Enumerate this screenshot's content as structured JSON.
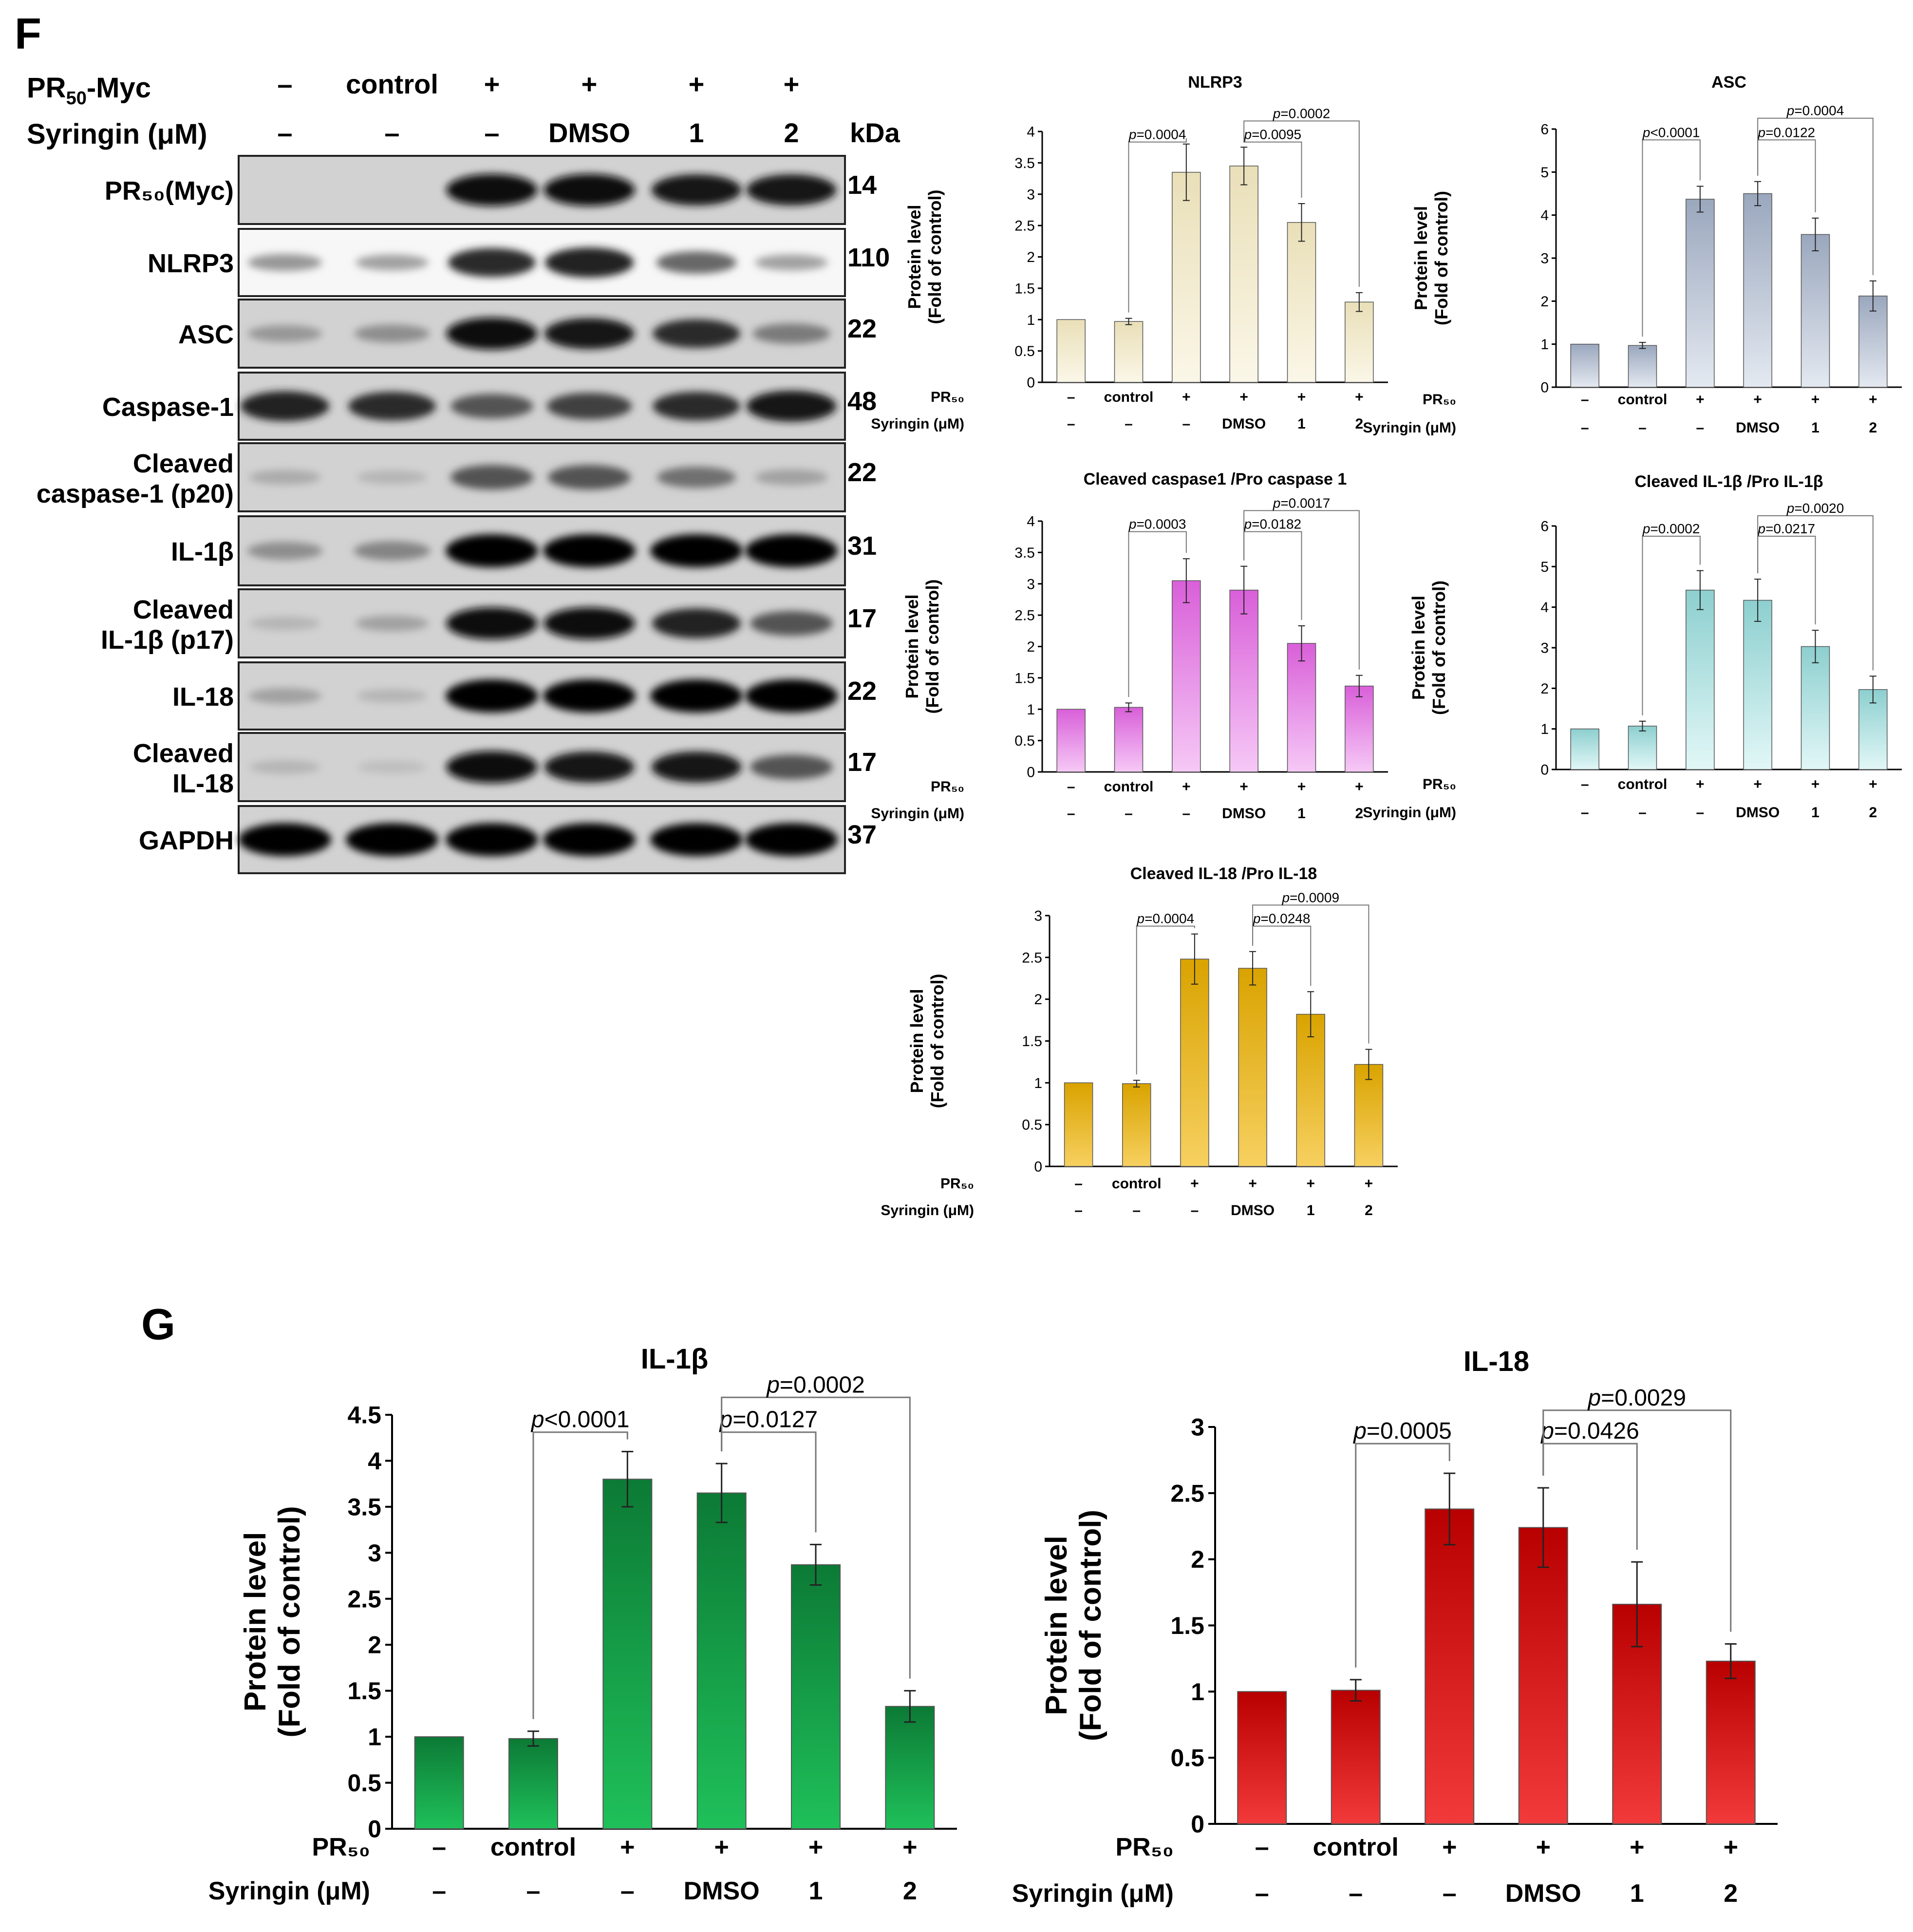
{
  "panels": {
    "f_label": "F",
    "g_label": "G"
  },
  "blot": {
    "header_rows": [
      {
        "label": "PR",
        "sub": "50",
        "suffix": "-Myc",
        "values": [
          "–",
          "control",
          "+",
          "+",
          "+",
          "+"
        ]
      },
      {
        "label": "Syringin (μM)",
        "values": [
          "–",
          "–",
          "–",
          "DMSO",
          "1",
          "2"
        ]
      }
    ],
    "kda_label": "kDa",
    "bands": [
      {
        "label": [
          "PR₅₀(Myc)"
        ],
        "kda": "14",
        "intensity": [
          0.0,
          0.0,
          0.95,
          0.95,
          0.9,
          0.9
        ],
        "light": false
      },
      {
        "label": [
          "NLRP3"
        ],
        "kda": "110",
        "intensity": [
          0.25,
          0.2,
          0.8,
          0.85,
          0.5,
          0.2
        ],
        "light": true
      },
      {
        "label": [
          "ASC"
        ],
        "kda": "22",
        "intensity": [
          0.25,
          0.3,
          0.95,
          0.9,
          0.8,
          0.4
        ],
        "light": false
      },
      {
        "label": [
          "Caspase-1"
        ],
        "kda": "48",
        "intensity": [
          0.85,
          0.8,
          0.6,
          0.7,
          0.8,
          0.9
        ],
        "light": false
      },
      {
        "label": [
          "Cleaved",
          "caspase-1 (p20)"
        ],
        "kda": "22",
        "intensity": [
          0.15,
          0.1,
          0.6,
          0.6,
          0.45,
          0.2
        ],
        "light": false
      },
      {
        "label": [
          "IL-1β"
        ],
        "kda": "31",
        "intensity": [
          0.3,
          0.35,
          1.0,
          1.0,
          1.0,
          1.0
        ],
        "light": false
      },
      {
        "label": [
          "Cleaved",
          "IL-1β (p17)"
        ],
        "kda": "17",
        "intensity": [
          0.1,
          0.2,
          0.95,
          0.95,
          0.85,
          0.6
        ],
        "light": false
      },
      {
        "label": [
          "IL-18"
        ],
        "kda": "22",
        "intensity": [
          0.2,
          0.1,
          1.0,
          1.0,
          1.0,
          1.0
        ],
        "light": false
      },
      {
        "label": [
          "Cleaved",
          "IL-18"
        ],
        "kda": "17",
        "intensity": [
          0.1,
          0.05,
          0.95,
          0.9,
          0.9,
          0.6
        ],
        "light": false
      },
      {
        "label": [
          "GAPDH"
        ],
        "kda": "37",
        "intensity": [
          1.0,
          1.0,
          1.0,
          1.0,
          1.0,
          1.0
        ],
        "light": false
      }
    ]
  },
  "chart_data": [
    {
      "id": "nlrp3",
      "type": "bar",
      "title": "NLRP3",
      "ylabel": [
        "Protein level",
        "(Fold of control)"
      ],
      "ylim": [
        0,
        4
      ],
      "yticks": [
        "0",
        "0.5",
        "1",
        "1.5",
        "2",
        "2.5",
        "3",
        "3.5",
        "4"
      ],
      "values": [
        1.0,
        0.97,
        3.35,
        3.45,
        2.55,
        1.28
      ],
      "errors": [
        0,
        0.05,
        0.45,
        0.3,
        0.3,
        0.15
      ],
      "row1_label": "PR₅₀",
      "row2_label": "Syringin (μM)",
      "row1": [
        "–",
        "control",
        "+",
        "+",
        "+",
        "+"
      ],
      "row2": [
        "–",
        "–",
        "–",
        "DMSO",
        "1",
        "2"
      ],
      "color_top": "#e9dfb8",
      "color_bottom": "#fbf7e8",
      "brackets": [
        {
          "from": 1,
          "to": 2,
          "text": "=0.0004",
          "level": 0
        },
        {
          "from": 3,
          "to": 4,
          "text": "=0.0095",
          "level": 1
        },
        {
          "from": 3,
          "to": 5,
          "text": "=0.0002",
          "level": 2
        }
      ]
    },
    {
      "id": "asc",
      "type": "bar",
      "title": "ASC",
      "ylabel": [
        "Protein level",
        "(Fold of control)"
      ],
      "ylim": [
        0,
        6
      ],
      "yticks": [
        "0",
        "1",
        "2",
        "3",
        "4",
        "5",
        "6"
      ],
      "values": [
        1.0,
        0.97,
        4.37,
        4.5,
        3.55,
        2.12
      ],
      "errors": [
        0,
        0.07,
        0.3,
        0.28,
        0.38,
        0.35
      ],
      "row1_label": "PR₅₀",
      "row2_label": "Syringin (μM)",
      "row1": [
        "–",
        "control",
        "+",
        "+",
        "+",
        "+"
      ],
      "row2": [
        "–",
        "–",
        "–",
        "DMSO",
        "1",
        "2"
      ],
      "color_top": "#9aa7bd",
      "color_bottom": "#e4e9f1",
      "brackets": [
        {
          "from": 1,
          "to": 2,
          "text": "<0.0001",
          "level": 0
        },
        {
          "from": 3,
          "to": 4,
          "text": "=0.0122",
          "level": 1
        },
        {
          "from": 3,
          "to": 5,
          "text": "=0.0004",
          "level": 2
        }
      ]
    },
    {
      "id": "casp1",
      "type": "bar",
      "title": "Cleaved caspase1 /Pro caspase 1",
      "ylabel": [
        "Protein level",
        "(Fold of control)"
      ],
      "ylim": [
        0,
        4
      ],
      "yticks": [
        "0",
        "0.5",
        "1",
        "1.5",
        "2",
        "2.5",
        "3",
        "3.5",
        "4"
      ],
      "values": [
        1.0,
        1.03,
        3.05,
        2.9,
        2.05,
        1.37
      ],
      "errors": [
        0,
        0.07,
        0.35,
        0.38,
        0.28,
        0.17
      ],
      "row1_label": "PR₅₀",
      "row2_label": "Syringin (μM)",
      "row1": [
        "–",
        "control",
        "+",
        "+",
        "+",
        "+"
      ],
      "row2": [
        "–",
        "–",
        "–",
        "DMSO",
        "1",
        "2"
      ],
      "color_top": "#d95fd9",
      "color_bottom": "#f6c9f6",
      "brackets": [
        {
          "from": 1,
          "to": 2,
          "text": "=0.0003",
          "level": 0
        },
        {
          "from": 3,
          "to": 4,
          "text": "=0.0182",
          "level": 1
        },
        {
          "from": 3,
          "to": 5,
          "text": "=0.0017",
          "level": 2
        }
      ]
    },
    {
      "id": "il1b",
      "type": "bar",
      "title": "Cleaved IL-1β /Pro IL-1β",
      "ylabel": [
        "Protein level",
        "(Fold of control)"
      ],
      "ylim": [
        0,
        6
      ],
      "yticks": [
        "0",
        "1",
        "2",
        "3",
        "4",
        "5",
        "6"
      ],
      "values": [
        1.0,
        1.07,
        4.42,
        4.17,
        3.03,
        1.97
      ],
      "errors": [
        0,
        0.12,
        0.48,
        0.52,
        0.4,
        0.33
      ],
      "row1_label": "PR₅₀",
      "row2_label": "Syringin (μM)",
      "row1": [
        "–",
        "control",
        "+",
        "+",
        "+",
        "+"
      ],
      "row2": [
        "–",
        "–",
        "–",
        "DMSO",
        "1",
        "2"
      ],
      "color_top": "#8dcfcf",
      "color_bottom": "#e2f7f7",
      "brackets": [
        {
          "from": 1,
          "to": 2,
          "text": "=0.0002",
          "level": 0
        },
        {
          "from": 3,
          "to": 4,
          "text": "=0.0217",
          "level": 1
        },
        {
          "from": 3,
          "to": 5,
          "text": "=0.0020",
          "level": 2
        }
      ]
    },
    {
      "id": "il18",
      "type": "bar",
      "title": "Cleaved IL-18 /Pro IL-18",
      "ylabel": [
        "Protein level",
        "(Fold of control)"
      ],
      "ylim": [
        0,
        3
      ],
      "yticks": [
        "0",
        "0.5",
        "1",
        "1.5",
        "2",
        "2.5",
        "3"
      ],
      "values": [
        1.0,
        0.99,
        2.48,
        2.37,
        1.82,
        1.22
      ],
      "errors": [
        0,
        0.04,
        0.3,
        0.2,
        0.27,
        0.18
      ],
      "row1_label": "PR₅₀",
      "row2_label": "Syringin (μM)",
      "row1": [
        "–",
        "control",
        "+",
        "+",
        "+",
        "+"
      ],
      "row2": [
        "–",
        "–",
        "–",
        "DMSO",
        "1",
        "2"
      ],
      "color_top": "#d9a300",
      "color_bottom": "#f7d060",
      "brackets": [
        {
          "from": 1,
          "to": 2,
          "text": "=0.0004",
          "level": 0
        },
        {
          "from": 3,
          "to": 4,
          "text": "=0.0248",
          "level": 1
        },
        {
          "from": 3,
          "to": 5,
          "text": "=0.0009",
          "level": 2
        }
      ]
    },
    {
      "id": "g_il1b",
      "type": "bar",
      "title": "IL-1β",
      "ylabel": [
        "Protein level",
        "(Fold of control)"
      ],
      "ylim": [
        0,
        4.5
      ],
      "yticks": [
        "0",
        "0.5",
        "1",
        "1.5",
        "2",
        "2.5",
        "3",
        "3.5",
        "4",
        "4.5"
      ],
      "values": [
        1.0,
        0.98,
        3.8,
        3.65,
        2.87,
        1.33
      ],
      "errors": [
        0,
        0.08,
        0.3,
        0.32,
        0.22,
        0.17
      ],
      "row1_label": "PR₅₀",
      "row2_label": "Syringin (μM)",
      "row1": [
        "–",
        "control",
        "+",
        "+",
        "+",
        "+"
      ],
      "row2": [
        "–",
        "–",
        "–",
        "DMSO",
        "1",
        "2"
      ],
      "color_top": "#0c7a35",
      "color_bottom": "#1fc05a",
      "brackets": [
        {
          "from": 1,
          "to": 2,
          "text": "<0.0001",
          "level": 0
        },
        {
          "from": 3,
          "to": 4,
          "text": "=0.0127",
          "level": 1
        },
        {
          "from": 3,
          "to": 5,
          "text": "=0.0002",
          "level": 2
        }
      ]
    },
    {
      "id": "g_il18",
      "type": "bar",
      "title": "IL-18",
      "ylabel": [
        "Protein level",
        "(Fold of control)"
      ],
      "ylim": [
        0,
        3
      ],
      "yticks": [
        "0",
        "0.5",
        "1",
        "1.5",
        "2",
        "2.5",
        "3"
      ],
      "values": [
        1.0,
        1.01,
        2.38,
        2.24,
        1.66,
        1.23
      ],
      "errors": [
        0,
        0.08,
        0.27,
        0.3,
        0.32,
        0.13
      ],
      "row1_label": "PR₅₀",
      "row2_label": "Syringin (μM)",
      "row1": [
        "–",
        "control",
        "+",
        "+",
        "+",
        "+"
      ],
      "row2": [
        "–",
        "–",
        "–",
        "DMSO",
        "1",
        "2"
      ],
      "color_top": "#b80000",
      "color_bottom": "#f23a3a",
      "brackets": [
        {
          "from": 1,
          "to": 2,
          "text": "=0.0005",
          "level": 0
        },
        {
          "from": 3,
          "to": 4,
          "text": "=0.0426",
          "level": 1
        },
        {
          "from": 3,
          "to": 5,
          "text": "=0.0029",
          "level": 2
        }
      ]
    }
  ]
}
